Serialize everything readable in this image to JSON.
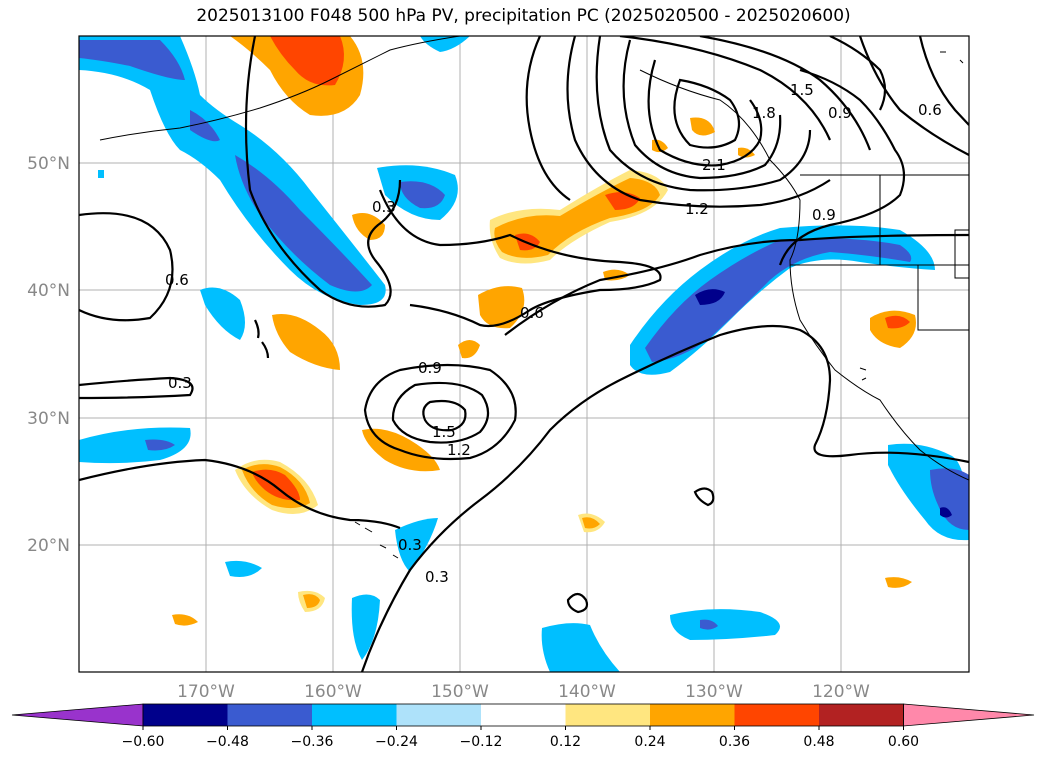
{
  "title": "2025013100 F048 500 hPa PV, precipitation PC (2025020500 - 2025020600)",
  "lat_labels": [
    "50°N",
    "40°N",
    "30°N",
    "20°N"
  ],
  "lon_labels": [
    "170°W",
    "160°W",
    "150°W",
    "140°W",
    "130°W",
    "120°W"
  ],
  "contour_labels": [
    "0.6",
    "0.3",
    "0.3",
    "0.9",
    "1.5",
    "1.2",
    "0.6",
    "0.3",
    "0.3",
    "1.2",
    "2.1",
    "1.8",
    "1.5",
    "0.9",
    "0.6",
    "0.9"
  ],
  "colorbar": {
    "tick_labels": [
      "−0.60",
      "−0.48",
      "−0.36",
      "−0.24",
      "−0.12",
      "0.12",
      "0.24",
      "0.36",
      "0.48",
      "0.60"
    ],
    "colors": [
      "#9933cc",
      "#00008b",
      "#3a5bd0",
      "#00bfff",
      "#aee2fa",
      "#ffffff",
      "#ffe680",
      "#ffa500",
      "#ff4500",
      "#b22222",
      "#ff88aa"
    ]
  }
}
